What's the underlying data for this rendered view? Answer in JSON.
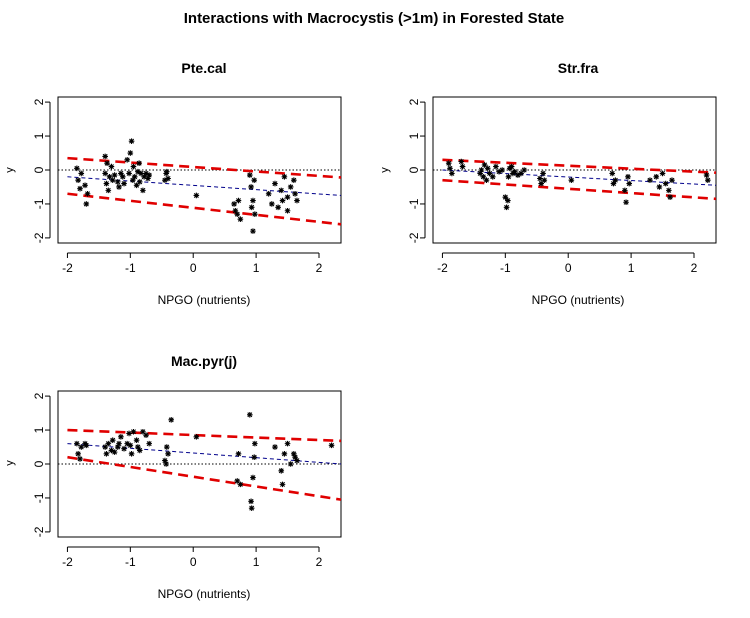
{
  "title": "Interactions with Macrocystis (>1m) in Forested State",
  "chart_data": [
    {
      "type": "scatter",
      "title": "Pte.cal",
      "xlabel": "NPGO (nutrients)",
      "ylabel": "y",
      "xlim": [
        -2.15,
        2.35
      ],
      "ylim": [
        -2.15,
        2.15
      ],
      "xticks": [
        "-2",
        "-1",
        "0",
        "1",
        "2"
      ],
      "yticks": [
        "-2",
        "-1",
        "0",
        "1",
        "2"
      ],
      "reference_line": 0,
      "fit": {
        "x": [
          -2.0,
          2.35
        ],
        "y": [
          -0.2,
          -0.75
        ]
      },
      "upper": {
        "x": [
          -2.0,
          2.35
        ],
        "y": [
          0.35,
          -0.22
        ]
      },
      "lower": {
        "x": [
          -2.0,
          2.35
        ],
        "y": [
          -0.7,
          -1.6
        ]
      },
      "points": {
        "x": [
          -1.85,
          -1.83,
          -1.8,
          -1.78,
          -1.72,
          -1.7,
          -1.68,
          -1.4,
          -1.4,
          -1.38,
          -1.37,
          -1.35,
          -1.33,
          -1.3,
          -1.28,
          -1.25,
          -1.2,
          -1.18,
          -1.15,
          -1.12,
          -1.1,
          -1.05,
          -1.02,
          -1.0,
          -0.98,
          -0.96,
          -0.95,
          -0.93,
          -0.9,
          -0.88,
          -0.86,
          -0.85,
          -0.83,
          -0.8,
          -0.78,
          -0.75,
          -0.72,
          -0.7,
          -0.45,
          -0.43,
          -0.42,
          -0.4,
          0.05,
          0.65,
          0.67,
          0.7,
          0.72,
          0.75,
          0.9,
          0.92,
          0.93,
          0.95,
          0.95,
          0.97,
          0.98,
          1.2,
          1.25,
          1.3,
          1.35,
          1.4,
          1.42,
          1.45,
          1.5,
          1.5,
          1.55,
          1.6,
          1.62,
          1.65
        ],
        "y": [
          0.05,
          -0.3,
          -0.55,
          -0.1,
          -0.45,
          -1.0,
          -0.7,
          0.4,
          -0.1,
          -0.4,
          0.2,
          -0.6,
          -0.2,
          0.1,
          -0.3,
          -0.15,
          -0.35,
          -0.5,
          -0.1,
          -0.2,
          -0.4,
          0.3,
          -0.1,
          0.5,
          0.85,
          -0.3,
          0.1,
          -0.2,
          -0.45,
          -0.05,
          0.2,
          -0.35,
          -0.1,
          -0.6,
          -0.2,
          -0.1,
          -0.25,
          -0.15,
          -0.3,
          -0.1,
          -0.05,
          -0.25,
          -0.75,
          -1.0,
          -1.2,
          -1.3,
          -0.9,
          -1.45,
          -0.15,
          -0.5,
          -1.1,
          -1.8,
          -0.9,
          -0.3,
          -1.3,
          -0.7,
          -1.0,
          -0.4,
          -1.1,
          -0.6,
          -0.9,
          -0.2,
          -1.2,
          -0.8,
          -0.5,
          -0.3,
          -0.7,
          -0.9
        ]
      }
    },
    {
      "type": "scatter",
      "title": "Str.fra",
      "xlabel": "NPGO (nutrients)",
      "ylabel": "y",
      "xlim": [
        -2.15,
        2.35
      ],
      "ylim": [
        -2.15,
        2.15
      ],
      "xticks": [
        "-2",
        "-1",
        "0",
        "1",
        "2"
      ],
      "yticks": [
        "-2",
        "-1",
        "0",
        "1",
        "2"
      ],
      "reference_line": 0,
      "fit": {
        "x": [
          -2.0,
          2.35
        ],
        "y": [
          0.0,
          -0.45
        ]
      },
      "upper": {
        "x": [
          -2.0,
          2.35
        ],
        "y": [
          0.3,
          -0.08
        ]
      },
      "lower": {
        "x": [
          -2.0,
          2.35
        ],
        "y": [
          -0.3,
          -0.85
        ]
      },
      "points": {
        "x": [
          -1.9,
          -1.88,
          -1.85,
          -1.7,
          -1.68,
          -1.4,
          -1.38,
          -1.35,
          -1.33,
          -1.3,
          -1.28,
          -1.25,
          -1.2,
          -1.15,
          -1.1,
          -1.05,
          -1.0,
          -0.98,
          -0.96,
          -0.95,
          -0.93,
          -0.9,
          -0.88,
          -0.85,
          -0.8,
          -0.75,
          -0.7,
          -0.45,
          -0.43,
          -0.4,
          -0.38,
          0.05,
          0.7,
          0.72,
          0.75,
          0.9,
          0.92,
          0.95,
          0.97,
          1.3,
          1.4,
          1.45,
          1.5,
          1.55,
          1.6,
          1.62,
          1.65,
          2.2,
          2.22
        ],
        "y": [
          0.2,
          0.05,
          -0.1,
          0.25,
          0.1,
          -0.1,
          0.0,
          -0.2,
          0.15,
          -0.3,
          0.05,
          -0.1,
          -0.2,
          0.1,
          -0.05,
          0.0,
          -0.8,
          -1.1,
          -0.9,
          -0.2,
          0.05,
          0.1,
          -0.1,
          -0.05,
          -0.15,
          -0.1,
          0.0,
          -0.25,
          -0.4,
          -0.1,
          -0.3,
          -0.3,
          -0.1,
          -0.4,
          -0.3,
          -0.6,
          -0.95,
          -0.2,
          -0.4,
          -0.3,
          -0.2,
          -0.5,
          -0.1,
          -0.4,
          -0.6,
          -0.8,
          -0.3,
          -0.15,
          -0.3
        ]
      }
    },
    {
      "type": "scatter",
      "title": "Mac.pyr(j)",
      "xlabel": "NPGO (nutrients)",
      "ylabel": "y",
      "xlim": [
        -2.15,
        2.35
      ],
      "ylim": [
        -2.15,
        2.15
      ],
      "xticks": [
        "-2",
        "-1",
        "0",
        "1",
        "2"
      ],
      "yticks": [
        "-2",
        "-1",
        "0",
        "1",
        "2"
      ],
      "reference_line": 0,
      "fit": {
        "x": [
          -2.0,
          2.35
        ],
        "y": [
          0.6,
          0.0
        ]
      },
      "upper": {
        "x": [
          -2.0,
          2.35
        ],
        "y": [
          1.0,
          0.68
        ]
      },
      "lower": {
        "x": [
          -2.0,
          2.35
        ],
        "y": [
          0.2,
          -1.05
        ]
      },
      "points": {
        "x": [
          -1.85,
          -1.83,
          -1.8,
          -1.78,
          -1.72,
          -1.7,
          -1.4,
          -1.38,
          -1.35,
          -1.3,
          -1.28,
          -1.25,
          -1.2,
          -1.18,
          -1.15,
          -1.1,
          -1.05,
          -1.02,
          -1.0,
          -0.98,
          -0.95,
          -0.9,
          -0.88,
          -0.85,
          -0.8,
          -0.75,
          -0.7,
          -0.45,
          -0.43,
          -0.42,
          -0.4,
          -0.35,
          0.05,
          0.7,
          0.72,
          0.75,
          0.9,
          0.92,
          0.93,
          0.95,
          0.97,
          0.98,
          1.3,
          1.4,
          1.42,
          1.45,
          1.5,
          1.55,
          1.6,
          1.62,
          1.65,
          2.2
        ],
        "y": [
          0.6,
          0.3,
          0.15,
          0.5,
          0.6,
          0.55,
          0.5,
          0.3,
          0.6,
          0.4,
          0.7,
          0.35,
          0.5,
          0.6,
          0.8,
          0.45,
          0.6,
          0.9,
          0.55,
          0.3,
          0.95,
          0.7,
          0.5,
          0.4,
          0.95,
          0.85,
          0.6,
          0.1,
          0.0,
          0.5,
          0.3,
          1.3,
          0.8,
          -0.5,
          0.3,
          -0.6,
          1.45,
          -1.1,
          -1.3,
          -0.4,
          0.2,
          0.6,
          0.5,
          -0.2,
          -0.6,
          0.3,
          0.6,
          0.0,
          0.3,
          0.2,
          0.1,
          0.55
        ]
      }
    }
  ]
}
